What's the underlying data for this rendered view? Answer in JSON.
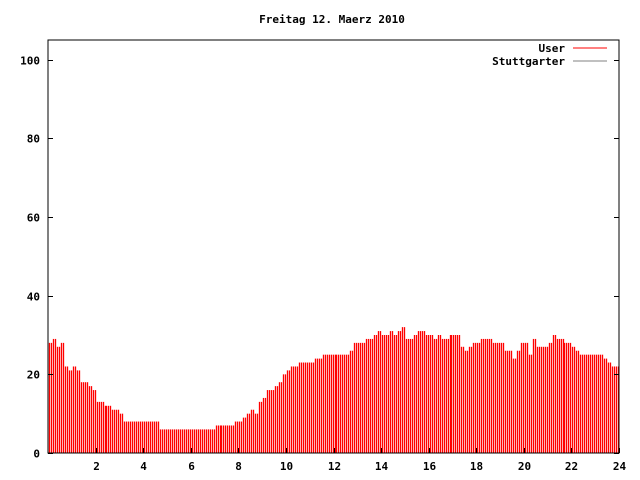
{
  "chart_data": {
    "type": "bar",
    "style": "impulses",
    "title": "Freitag 12. Maerz 2010",
    "xlabel": "",
    "ylabel": "",
    "xlim": [
      0,
      24
    ],
    "ylim": [
      0,
      105
    ],
    "x_step": 0.16667,
    "xticks": [
      "2",
      "4",
      "6",
      "8",
      "10",
      "12",
      "14",
      "16",
      "18",
      "20",
      "22",
      "24"
    ],
    "xtick_values": [
      2,
      4,
      6,
      8,
      10,
      12,
      14,
      16,
      18,
      20,
      22,
      24
    ],
    "yticks": [
      "0",
      "20",
      "40",
      "60",
      "80",
      "100"
    ],
    "ytick_values": [
      0,
      20,
      40,
      60,
      80,
      100
    ],
    "legend_position": "top-right",
    "series": [
      {
        "name": "User",
        "color": "#ff0000",
        "values": [
          28,
          29,
          27,
          28,
          22,
          21,
          22,
          21,
          18,
          18,
          17,
          16,
          13,
          13,
          12,
          12,
          11,
          11,
          10,
          8,
          8,
          8,
          8,
          8,
          8,
          8,
          8,
          8,
          6,
          6,
          6,
          6,
          6,
          6,
          6,
          6,
          6,
          6,
          6,
          6,
          6,
          6,
          7,
          7,
          7,
          7,
          7,
          8,
          8,
          9,
          10,
          11,
          10,
          13,
          14,
          16,
          16,
          17,
          18,
          20,
          21,
          22,
          22,
          23,
          23,
          23,
          23,
          24,
          24,
          25,
          25,
          25,
          25,
          25,
          25,
          25,
          26,
          28,
          28,
          28,
          29,
          29,
          30,
          31,
          30,
          30,
          31,
          30,
          31,
          32,
          29,
          29,
          30,
          31,
          31,
          30,
          30,
          29,
          30,
          29,
          29,
          30,
          30,
          30,
          27,
          26,
          27,
          28,
          28,
          29,
          29,
          29,
          28,
          28,
          28,
          26,
          26,
          24,
          26,
          28,
          28,
          25,
          29,
          27,
          27,
          27,
          28,
          30,
          29,
          29,
          28,
          28,
          27,
          26,
          25,
          25,
          25,
          25,
          25,
          25,
          24,
          23,
          22,
          22
        ]
      },
      {
        "name": "Stuttgarter",
        "color": "#808080",
        "values": []
      }
    ]
  }
}
